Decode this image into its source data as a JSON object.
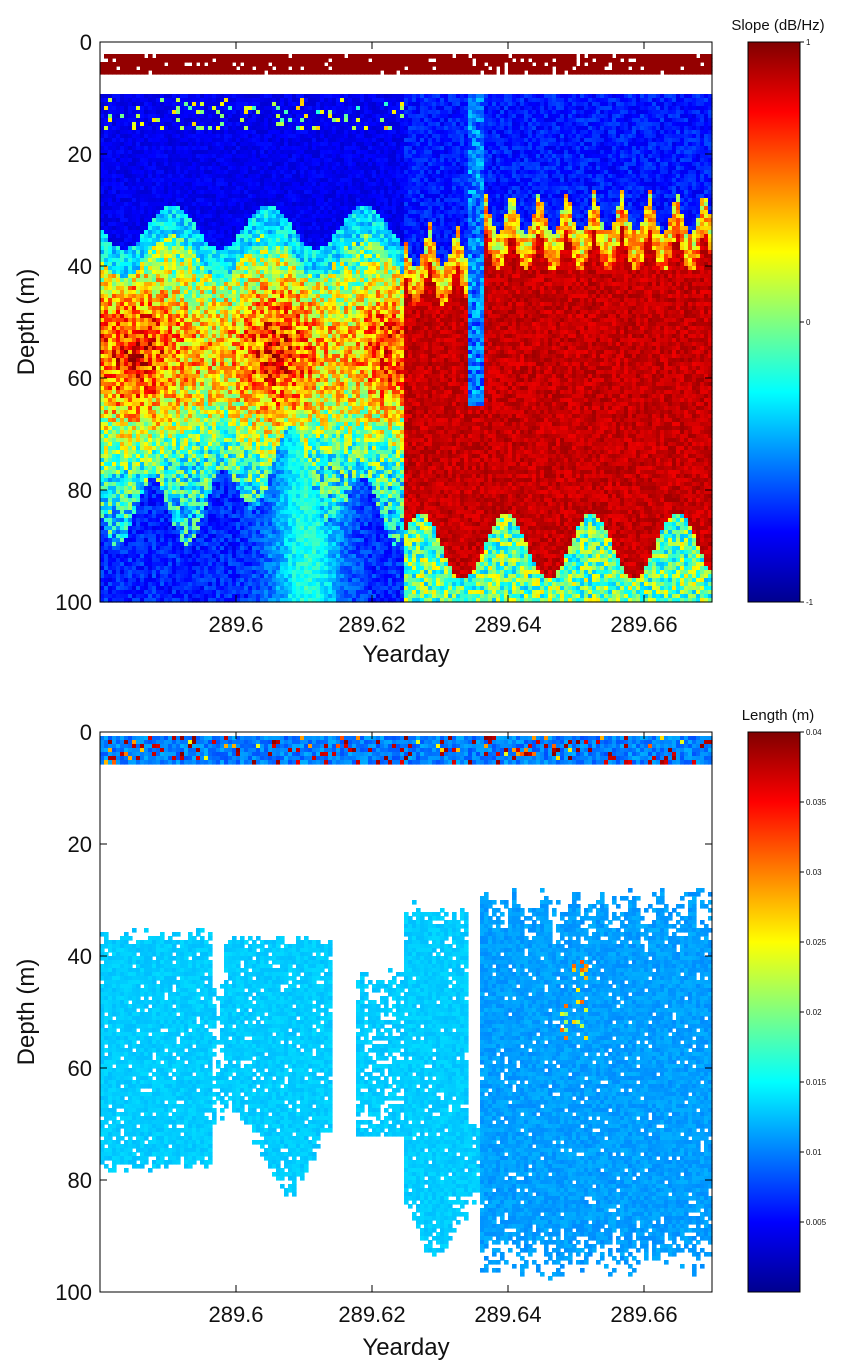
{
  "chart_data": [
    {
      "type": "heatmap",
      "title": "",
      "xlabel": "Yearday",
      "ylabel": "Depth (m)",
      "xlim": [
        289.58,
        289.67
      ],
      "ylim": [
        100,
        0
      ],
      "x_ticks": [
        289.6,
        289.62,
        289.64,
        289.66
      ],
      "x_tick_labels": [
        "289.6",
        "289.62",
        "289.64",
        "289.66"
      ],
      "y_ticks": [
        0,
        20,
        40,
        60,
        80,
        100
      ],
      "y_tick_labels": [
        "0",
        "20",
        "40",
        "60",
        "80",
        "100"
      ],
      "grid": false,
      "colorbar": {
        "label": "Slope (dB/Hz)",
        "range": [
          -1,
          1
        ],
        "ticks": [
          1,
          0,
          -1
        ],
        "tick_labels": [
          "1",
          "0",
          "-1"
        ],
        "colormap": "jet"
      },
      "features": {
        "surface_band_depth": [
          2,
          6
        ],
        "surface_band_value": 1,
        "near_field_gap_depth": [
          6,
          9
        ],
        "scattering_layer_onset_yearday": 289.626,
        "scattering_layer_top_depth": 30,
        "scattering_layer_bottom_depth": 90
      }
    },
    {
      "type": "heatmap",
      "title": "",
      "xlabel": "Yearday",
      "ylabel": "Depth (m)",
      "xlim": [
        289.58,
        289.67
      ],
      "ylim": [
        100,
        0
      ],
      "x_ticks": [
        289.6,
        289.62,
        289.64,
        289.66
      ],
      "x_tick_labels": [
        "289.6",
        "289.62",
        "289.64",
        "289.66"
      ],
      "y_ticks": [
        0,
        20,
        40,
        60,
        80,
        100
      ],
      "y_tick_labels": [
        "0",
        "20",
        "40",
        "60",
        "80",
        "100"
      ],
      "grid": false,
      "colorbar": {
        "label": "Length (m)",
        "range": [
          0,
          0.04
        ],
        "ticks": [
          0.04,
          0.035,
          0.03,
          0.025,
          0.02,
          0.015,
          0.01,
          0.005
        ],
        "tick_labels": [
          "0.04",
          "0.035",
          "0.03",
          "0.025",
          "0.02",
          "0.015",
          "0.01",
          "0.005"
        ],
        "colormap": "jet"
      },
      "features": {
        "typical_length_m": 0.012,
        "deep_layer_length_m": 0.01,
        "surface_band_depth": [
          1,
          6
        ]
      }
    }
  ]
}
